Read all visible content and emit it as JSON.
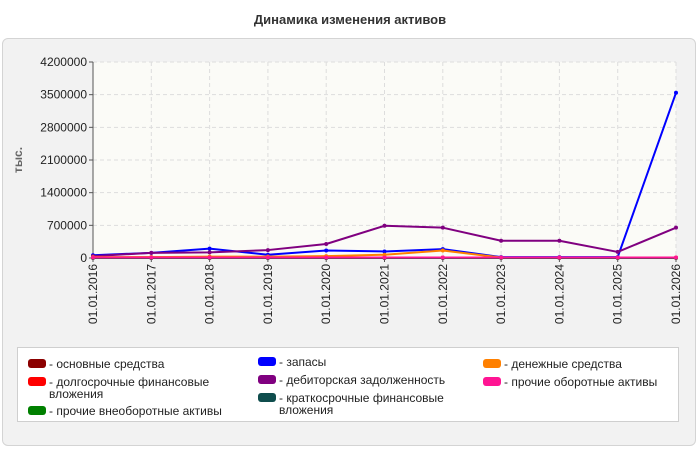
{
  "title": "Динамика изменения активов",
  "chart_data": {
    "type": "line",
    "title": "Динамика изменения активов",
    "ylabel": "тыс.",
    "xlabel": "",
    "ylim": [
      0,
      4200000
    ],
    "yticks": [
      "0",
      "700000",
      "1400000",
      "2100000",
      "2800000",
      "3500000",
      "4200000"
    ],
    "ytick_values": [
      0,
      700000,
      1400000,
      2100000,
      2800000,
      3500000,
      4200000
    ],
    "categories": [
      "01.01.2016",
      "01.01.2017",
      "01.01.2018",
      "01.01.2019",
      "01.01.2020",
      "01.01.2021",
      "01.01.2022",
      "01.01.2023",
      "01.01.2024",
      "01.01.2025",
      "01.01.2026"
    ],
    "grid": true,
    "legend_position": "bottom",
    "series": [
      {
        "name": "основные средства",
        "color": "#8b0000",
        "values": [
          10000,
          15000,
          15000,
          12000,
          10000,
          10000,
          10000,
          8000,
          8000,
          5000,
          5000
        ]
      },
      {
        "name": "долгосрочные финансовые вложения",
        "color": "#ff0000",
        "values": [
          5000,
          5000,
          5000,
          5000,
          5000,
          5000,
          5000,
          5000,
          5000,
          5000,
          5000
        ]
      },
      {
        "name": "прочие внеоборотные активы",
        "color": "#008000",
        "values": [
          3000,
          3000,
          3000,
          3000,
          3000,
          3000,
          3000,
          3000,
          3000,
          3000,
          3000
        ]
      },
      {
        "name": "запасы",
        "color": "#0000ff",
        "values": [
          60000,
          110000,
          200000,
          70000,
          160000,
          140000,
          190000,
          20000,
          20000,
          20000,
          3540000
        ]
      },
      {
        "name": "дебиторская задолженность",
        "color": "#800080",
        "values": [
          40000,
          110000,
          120000,
          170000,
          300000,
          690000,
          650000,
          370000,
          370000,
          130000,
          650000
        ]
      },
      {
        "name": "краткосрочные финансовые вложения",
        "color": "#0f4d4d",
        "values": [
          2000,
          2000,
          2000,
          2000,
          2000,
          2000,
          2000,
          2000,
          2000,
          2000,
          2000
        ]
      },
      {
        "name": "денежные средства",
        "color": "#ff8000",
        "values": [
          20000,
          20000,
          30000,
          30000,
          40000,
          70000,
          160000,
          10000,
          10000,
          10000,
          10000
        ]
      },
      {
        "name": "прочие оборотные активы",
        "color": "#ff1493",
        "values": [
          10000,
          10000,
          10000,
          10000,
          10000,
          10000,
          10000,
          10000,
          10000,
          10000,
          10000
        ]
      }
    ]
  },
  "legend": {
    "items": [
      {
        "label": "- основные средства",
        "color": "#8b0000"
      },
      {
        "label": "- долгосрочные финансовые вложения",
        "color": "#ff0000"
      },
      {
        "label": "- прочие внеоборотные активы",
        "color": "#008000"
      },
      {
        "label": "- запасы",
        "color": "#0000ff"
      },
      {
        "label": "- дебиторская задолженность",
        "color": "#800080"
      },
      {
        "label": "- краткосрочные финансовые вложения",
        "color": "#0f4d4d"
      },
      {
        "label": "- денежные средства",
        "color": "#ff8000"
      },
      {
        "label": "- прочие оборотные активы",
        "color": "#ff1493"
      }
    ]
  }
}
